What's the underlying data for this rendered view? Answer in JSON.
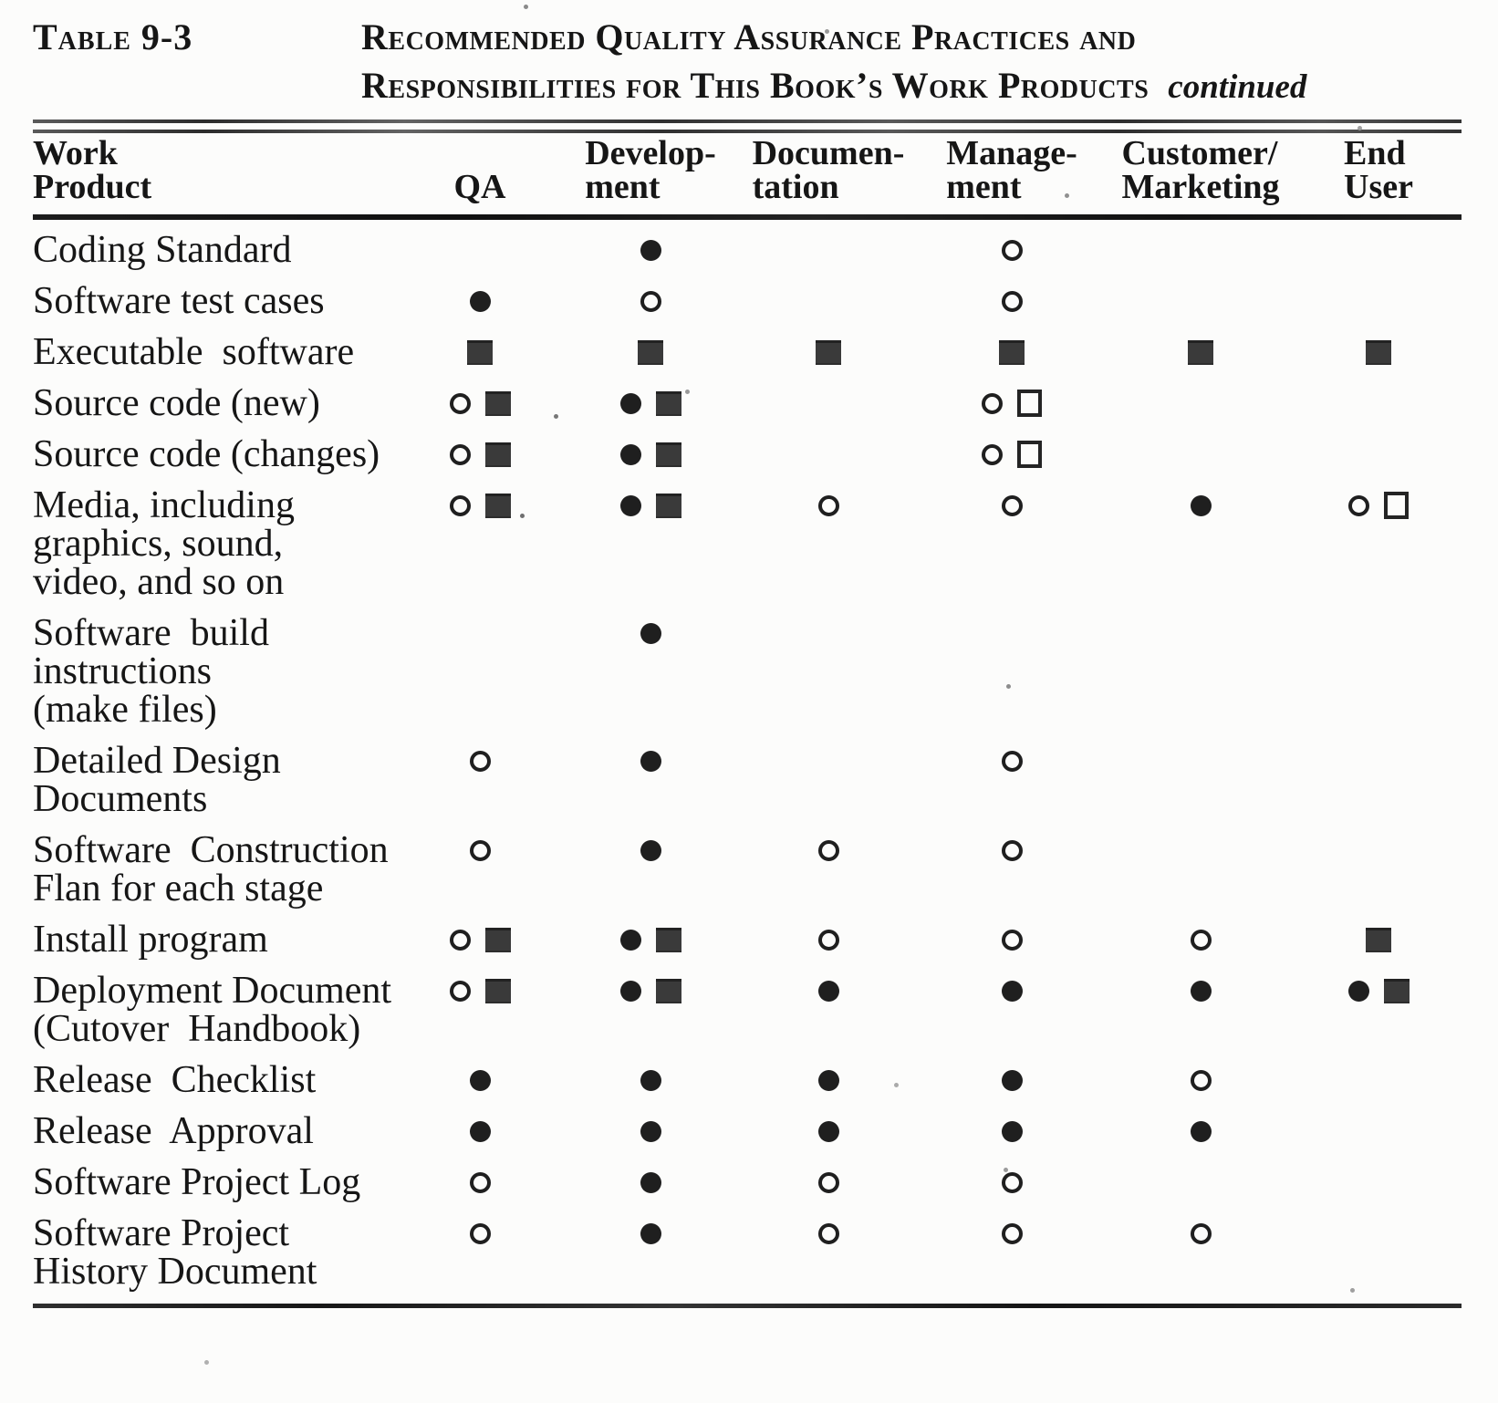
{
  "caption": {
    "table_label": "Table 9-3",
    "title_line1": "Recommended Quality Assurance Practices and",
    "title_line2": "Responsibilities for This Book’s Work Products",
    "continued_note": "continued"
  },
  "colors": {
    "ink": "#161616",
    "paper": "#fcfcfb",
    "symbol_ink": "#1f1f1f",
    "filled_square_fill": "#3a3a3a"
  },
  "symbol_glyphs": {
    "filled-circle": "●",
    "open-circle": "○",
    "filled-square": "■",
    "open-square": "□"
  },
  "table": {
    "columns": [
      {
        "key": "work_product",
        "label_lines": [
          "Work",
          "Product"
        ]
      },
      {
        "key": "qa",
        "label_lines": [
          "QA"
        ]
      },
      {
        "key": "development",
        "label_lines": [
          "Develop-",
          "ment"
        ]
      },
      {
        "key": "documentation",
        "label_lines": [
          "Documen-",
          "tation"
        ]
      },
      {
        "key": "management",
        "label_lines": [
          "Manage-",
          "ment"
        ]
      },
      {
        "key": "customer_marketing",
        "label_lines": [
          "Customer/",
          "Marketing"
        ]
      },
      {
        "key": "end_user",
        "label_lines": [
          "End",
          "User"
        ]
      }
    ],
    "rows": [
      {
        "label_lines": [
          "Coding Standard"
        ],
        "cells": [
          [],
          [
            "filled-circle"
          ],
          [],
          [
            "open-circle"
          ],
          [],
          []
        ]
      },
      {
        "label_lines": [
          "Software test cases"
        ],
        "cells": [
          [
            "filled-circle"
          ],
          [
            "open-circle"
          ],
          [],
          [
            "open-circle"
          ],
          [],
          []
        ]
      },
      {
        "label_lines": [
          "Executable  software"
        ],
        "cells": [
          [
            "filled-square"
          ],
          [
            "filled-square"
          ],
          [
            "filled-square"
          ],
          [
            "filled-square"
          ],
          [
            "filled-square"
          ],
          [
            "filled-square"
          ]
        ]
      },
      {
        "label_lines": [
          "Source code (new)"
        ],
        "cells": [
          [
            "open-circle",
            "filled-square"
          ],
          [
            "filled-circle",
            "filled-square"
          ],
          [],
          [
            "open-circle",
            "open-square"
          ],
          [],
          []
        ]
      },
      {
        "label_lines": [
          "Source code (changes)"
        ],
        "cells": [
          [
            "open-circle",
            "filled-square"
          ],
          [
            "filled-circle",
            "filled-square"
          ],
          [],
          [
            "open-circle",
            "open-square"
          ],
          [],
          []
        ]
      },
      {
        "label_lines": [
          "Media, including",
          "graphics, sound,",
          "video, and so on"
        ],
        "cells": [
          [
            "open-circle",
            "filled-square"
          ],
          [
            "filled-circle",
            "filled-square"
          ],
          [
            "open-circle"
          ],
          [
            "open-circle"
          ],
          [
            "filled-circle"
          ],
          [
            "open-circle",
            "open-square"
          ]
        ]
      },
      {
        "label_lines": [
          "Software  build",
          "instructions",
          "(make files)"
        ],
        "cells": [
          [],
          [
            "filled-circle"
          ],
          [],
          [],
          [],
          []
        ]
      },
      {
        "label_lines": [
          "Detailed Design",
          "Documents"
        ],
        "cells": [
          [
            "open-circle"
          ],
          [
            "filled-circle"
          ],
          [],
          [
            "open-circle"
          ],
          [],
          []
        ]
      },
      {
        "label_lines": [
          "Software  Construction",
          "Flan for each stage"
        ],
        "cells": [
          [
            "open-circle"
          ],
          [
            "filled-circle"
          ],
          [
            "open-circle"
          ],
          [
            "open-circle"
          ],
          [],
          []
        ]
      },
      {
        "label_lines": [
          "Install program"
        ],
        "cells": [
          [
            "open-circle",
            "filled-square"
          ],
          [
            "filled-circle",
            "filled-square"
          ],
          [
            "open-circle"
          ],
          [
            "open-circle"
          ],
          [
            "open-circle"
          ],
          [
            "filled-square"
          ]
        ]
      },
      {
        "label_lines": [
          "Deployment Document",
          "(Cutover  Handbook)"
        ],
        "cells": [
          [
            "open-circle",
            "filled-square"
          ],
          [
            "filled-circle",
            "filled-square"
          ],
          [
            "filled-circle"
          ],
          [
            "filled-circle"
          ],
          [
            "filled-circle"
          ],
          [
            "filled-circle",
            "filled-square"
          ]
        ]
      },
      {
        "label_lines": [
          "Release  Checklist"
        ],
        "cells": [
          [
            "filled-circle"
          ],
          [
            "filled-circle"
          ],
          [
            "filled-circle"
          ],
          [
            "filled-circle"
          ],
          [
            "open-circle"
          ],
          []
        ]
      },
      {
        "label_lines": [
          "Release  Approval"
        ],
        "cells": [
          [
            "filled-circle"
          ],
          [
            "filled-circle"
          ],
          [
            "filled-circle"
          ],
          [
            "filled-circle"
          ],
          [
            "filled-circle"
          ],
          []
        ]
      },
      {
        "label_lines": [
          "Software Project Log"
        ],
        "cells": [
          [
            "open-circle"
          ],
          [
            "filled-circle"
          ],
          [
            "open-circle"
          ],
          [
            "open-circle"
          ],
          [],
          []
        ]
      },
      {
        "label_lines": [
          "Software Project",
          "History Document"
        ],
        "cells": [
          [
            "open-circle"
          ],
          [
            "filled-circle"
          ],
          [
            "open-circle"
          ],
          [
            "open-circle"
          ],
          [
            "open-circle"
          ],
          []
        ]
      }
    ]
  }
}
